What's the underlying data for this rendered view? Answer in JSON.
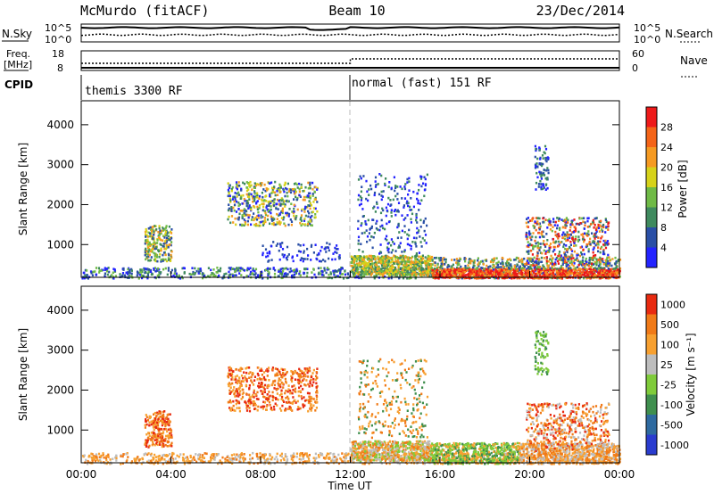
{
  "header": {
    "radar": "McMurdo (fitACF)",
    "beam": "Beam 10",
    "date": "23/Dec/2014"
  },
  "status_panel": {
    "nsky_label": "N.Sky",
    "nsky_ticks": [
      "10^5",
      "10^0"
    ],
    "nsearch_label": "N.Search",
    "nsearch_ticks": [
      "10^5",
      "10^0"
    ],
    "freq_label_top": "Freq.",
    "freq_label_bottom": "[MHz]",
    "freq_ticks": [
      "18",
      "8"
    ],
    "nave_label": "Nave",
    "nave_ticks": [
      "60",
      "0"
    ],
    "cpid_label": "CPID",
    "cpid_entries": [
      {
        "label": "themis 3300 RF",
        "start": "00:00"
      },
      {
        "label": "normal (fast) 151 RF",
        "start": "12:00"
      }
    ]
  },
  "chart_data": [
    {
      "type": "heatmap",
      "title": "",
      "xlabel": "Time UT",
      "ylabel": "Slant Range [km]",
      "xlim": [
        "00:00",
        "24:00"
      ],
      "ylim": [
        180,
        4600
      ],
      "yticks": [
        "1000",
        "2000",
        "3000",
        "4000"
      ],
      "colorbar_label": "Power [dB]",
      "colorbar_ticks": [
        "4",
        "8",
        "12",
        "16",
        "20",
        "24",
        "28"
      ],
      "colorbar_range": [
        0,
        30
      ],
      "colorbar_colors": [
        "#2323ff",
        "#2a4fa6",
        "#3f8a5e",
        "#6fba46",
        "#d6d21a",
        "#f59a22",
        "#f46418",
        "#ee1a1a"
      ],
      "grid": false
    },
    {
      "type": "heatmap",
      "title": "",
      "xlabel": "Time UT",
      "ylabel": "Slant Range [km]",
      "xlim": [
        "00:00",
        "24:00"
      ],
      "ylim": [
        180,
        4600
      ],
      "yticks": [
        "1000",
        "2000",
        "3000",
        "4000"
      ],
      "colorbar_label": "Velocity [m s⁻¹]",
      "colorbar_ticks": [
        "1000",
        "500",
        "100",
        "25",
        "-25",
        "-100",
        "-500",
        "-1000"
      ],
      "colorbar_colors": [
        "#2a3ccf",
        "#2e6aa0",
        "#3f8f4e",
        "#7fcb3a",
        "#bdbdbd",
        "#f7a030",
        "#f07a18",
        "#e82a10"
      ],
      "grid": false
    }
  ],
  "time_axis": {
    "ticks": [
      "00:00",
      "04:00",
      "08:00",
      "12:00",
      "16:00",
      "20:00",
      "00:00"
    ],
    "label": "Time UT"
  }
}
